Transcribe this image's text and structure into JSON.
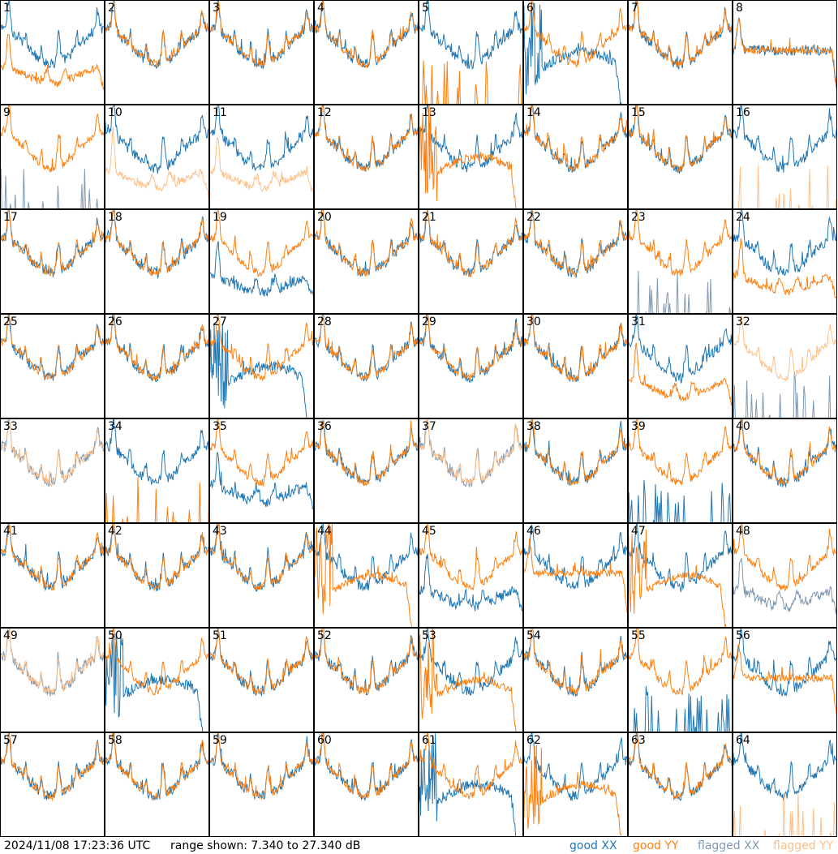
{
  "footer": {
    "timestamp": "2024/11/08 17:23:36 UTC",
    "range_text": "range shown: 7.340 to 27.340 dB",
    "legend": [
      "good XX",
      "good YY",
      "flagged XX",
      "flagged YY"
    ]
  },
  "colors": {
    "good_xx": "#1f77b4",
    "good_yy": "#ff7f0e",
    "flagged_xx": "#7f99b4",
    "flagged_yy": "#ffbf86",
    "frame": "#000000"
  },
  "chart_data": {
    "type": "line",
    "layout": "8x8 small multiples",
    "y_range_db": [
      7.34,
      27.34
    ],
    "panels": [
      {
        "id": "1",
        "xx": "good",
        "yy": "good",
        "xx_shape": "normal",
        "yy_shape": "offset_low"
      },
      {
        "id": "2",
        "xx": "good",
        "yy": "good"
      },
      {
        "id": "3",
        "xx": "good",
        "yy": "good"
      },
      {
        "id": "4",
        "xx": "good",
        "yy": "good"
      },
      {
        "id": "5",
        "xx": "good",
        "yy": "good",
        "xx_shape": "normal",
        "yy_shape": "spikes"
      },
      {
        "id": "6",
        "xx": "good",
        "yy": "good",
        "xx_shape": "dropout",
        "yy_shape": "normal"
      },
      {
        "id": "7",
        "xx": "good",
        "yy": "good"
      },
      {
        "id": "8",
        "xx": "good",
        "yy": "good",
        "xx_shape": "plateau",
        "yy_shape": "plateau"
      },
      {
        "id": "9",
        "xx": "flagged",
        "yy": "good",
        "xx_shape": "spikes",
        "yy_shape": "normal"
      },
      {
        "id": "10",
        "xx": "good",
        "yy": "flagged",
        "xx_shape": "normal",
        "yy_shape": "offset_low"
      },
      {
        "id": "11",
        "xx": "good",
        "yy": "flagged",
        "xx_shape": "normal",
        "yy_shape": "offset_low"
      },
      {
        "id": "12",
        "xx": "good",
        "yy": "good"
      },
      {
        "id": "13",
        "xx": "good",
        "yy": "good",
        "xx_shape": "normal",
        "yy_shape": "dropout"
      },
      {
        "id": "14",
        "xx": "good",
        "yy": "good"
      },
      {
        "id": "15",
        "xx": "good",
        "yy": "good"
      },
      {
        "id": "16",
        "xx": "good",
        "yy": "flagged",
        "xx_shape": "normal",
        "yy_shape": "spikes"
      },
      {
        "id": "17",
        "xx": "good",
        "yy": "good"
      },
      {
        "id": "18",
        "xx": "good",
        "yy": "good"
      },
      {
        "id": "19",
        "xx": "good",
        "yy": "good",
        "xx_shape": "offset_low",
        "yy_shape": "normal"
      },
      {
        "id": "20",
        "xx": "good",
        "yy": "good"
      },
      {
        "id": "21",
        "xx": "good",
        "yy": "good"
      },
      {
        "id": "22",
        "xx": "good",
        "yy": "good"
      },
      {
        "id": "23",
        "xx": "flagged",
        "yy": "good",
        "xx_shape": "spikes",
        "yy_shape": "normal"
      },
      {
        "id": "24",
        "xx": "good",
        "yy": "good",
        "xx_shape": "normal",
        "yy_shape": "offset_low"
      },
      {
        "id": "25",
        "xx": "good",
        "yy": "good"
      },
      {
        "id": "26",
        "xx": "good",
        "yy": "good"
      },
      {
        "id": "27",
        "xx": "good",
        "yy": "good",
        "xx_shape": "dropout",
        "yy_shape": "normal"
      },
      {
        "id": "28",
        "xx": "good",
        "yy": "good"
      },
      {
        "id": "29",
        "xx": "good",
        "yy": "good"
      },
      {
        "id": "30",
        "xx": "good",
        "yy": "good"
      },
      {
        "id": "31",
        "xx": "good",
        "yy": "good",
        "xx_shape": "normal",
        "yy_shape": "offset_low"
      },
      {
        "id": "32",
        "xx": "flagged",
        "yy": "flagged",
        "xx_shape": "spikes",
        "yy_shape": "normal"
      },
      {
        "id": "33",
        "xx": "flagged",
        "yy": "flagged"
      },
      {
        "id": "34",
        "xx": "good",
        "yy": "good",
        "xx_shape": "normal",
        "yy_shape": "spikes"
      },
      {
        "id": "35",
        "xx": "good",
        "yy": "good",
        "xx_shape": "offset_low",
        "yy_shape": "normal"
      },
      {
        "id": "36",
        "xx": "good",
        "yy": "good"
      },
      {
        "id": "37",
        "xx": "flagged",
        "yy": "flagged"
      },
      {
        "id": "38",
        "xx": "good",
        "yy": "good"
      },
      {
        "id": "39",
        "xx": "good",
        "yy": "good",
        "xx_shape": "spikes",
        "yy_shape": "normal"
      },
      {
        "id": "40",
        "xx": "good",
        "yy": "good"
      },
      {
        "id": "41",
        "xx": "good",
        "yy": "good"
      },
      {
        "id": "42",
        "xx": "good",
        "yy": "good"
      },
      {
        "id": "43",
        "xx": "good",
        "yy": "good"
      },
      {
        "id": "44",
        "xx": "good",
        "yy": "good",
        "xx_shape": "normal",
        "yy_shape": "dropout"
      },
      {
        "id": "45",
        "xx": "good",
        "yy": "good",
        "xx_shape": "offset_low",
        "yy_shape": "normal"
      },
      {
        "id": "46",
        "xx": "good",
        "yy": "good",
        "xx_shape": "normal",
        "yy_shape": "plateau"
      },
      {
        "id": "47",
        "xx": "good",
        "yy": "good",
        "xx_shape": "normal",
        "yy_shape": "dropout"
      },
      {
        "id": "48",
        "xx": "flagged",
        "yy": "good",
        "xx_shape": "offset_low",
        "yy_shape": "normal"
      },
      {
        "id": "49",
        "xx": "flagged",
        "yy": "flagged"
      },
      {
        "id": "50",
        "xx": "good",
        "yy": "good",
        "xx_shape": "dropout",
        "yy_shape": "normal"
      },
      {
        "id": "51",
        "xx": "good",
        "yy": "good"
      },
      {
        "id": "52",
        "xx": "good",
        "yy": "good"
      },
      {
        "id": "53",
        "xx": "good",
        "yy": "good",
        "xx_shape": "normal",
        "yy_shape": "dropout"
      },
      {
        "id": "54",
        "xx": "good",
        "yy": "good"
      },
      {
        "id": "55",
        "xx": "good",
        "yy": "good",
        "xx_shape": "spikes",
        "yy_shape": "normal"
      },
      {
        "id": "56",
        "xx": "good",
        "yy": "good",
        "xx_shape": "normal",
        "yy_shape": "plateau"
      },
      {
        "id": "57",
        "xx": "good",
        "yy": "good"
      },
      {
        "id": "58",
        "xx": "good",
        "yy": "good"
      },
      {
        "id": "59",
        "xx": "good",
        "yy": "good"
      },
      {
        "id": "60",
        "xx": "good",
        "yy": "good"
      },
      {
        "id": "61",
        "xx": "good",
        "yy": "good",
        "xx_shape": "dropout",
        "yy_shape": "normal"
      },
      {
        "id": "62",
        "xx": "good",
        "yy": "good",
        "xx_shape": "normal",
        "yy_shape": "dropout"
      },
      {
        "id": "63",
        "xx": "good",
        "yy": "good"
      },
      {
        "id": "64",
        "xx": "good",
        "yy": "flagged",
        "xx_shape": "normal",
        "yy_shape": "spikes"
      }
    ]
  }
}
